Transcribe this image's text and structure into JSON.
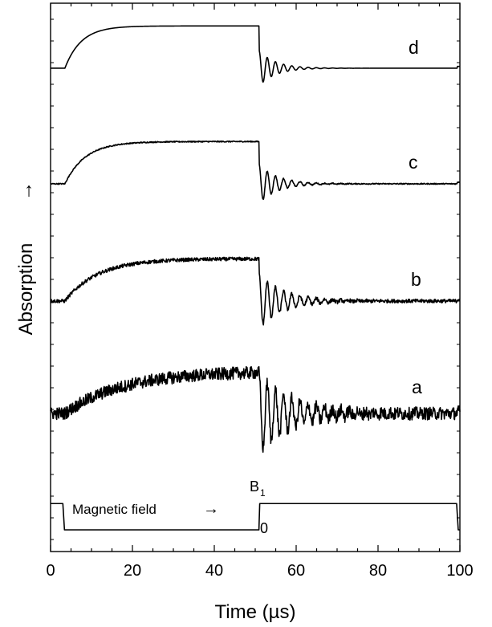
{
  "chart_data": {
    "type": "line",
    "xlabel": "Time (µs)",
    "ylabel": "Absorption",
    "xlim": [
      0,
      100
    ],
    "xticks": [
      0,
      20,
      40,
      60,
      80,
      100
    ],
    "xtick_labels": [
      "0",
      "20",
      "40",
      "60",
      "80",
      "100"
    ],
    "y_axis_ticks_labeled": false,
    "grid": false,
    "legend": "none",
    "line_color": "#000000",
    "series": [
      {
        "name": "d",
        "kind": "absorption",
        "baseline": 0.9,
        "plateau": 10.3,
        "rise_start": 3.5,
        "rise_tau": 4.0,
        "step_off": 51.0,
        "ringing_amplitude": 3.9,
        "ringing_period": 2.0,
        "ringing_decay": 4.0,
        "noise": 0.0
      },
      {
        "name": "c",
        "kind": "absorption",
        "baseline": 0.9,
        "plateau": 10.3,
        "rise_start": 3.5,
        "rise_tau": 5.0,
        "step_off": 51.0,
        "ringing_amplitude": 4.3,
        "ringing_period": 2.0,
        "ringing_decay": 4.5,
        "noise": 0.12
      },
      {
        "name": "b",
        "kind": "absorption",
        "baseline": 0.9,
        "plateau": 10.3,
        "rise_start": 3.5,
        "rise_tau": 8.0,
        "step_off": 51.0,
        "ringing_amplitude": 5.9,
        "ringing_period": 2.0,
        "ringing_decay": 6.0,
        "noise": 0.4
      },
      {
        "name": "a",
        "kind": "absorption",
        "baseline": 0.9,
        "plateau": 10.3,
        "rise_start": 3.5,
        "rise_tau": 14.0,
        "step_off": 51.0,
        "ringing_amplitude": 8.5,
        "ringing_period": 2.0,
        "ringing_decay": 8.5,
        "noise": 1.4
      },
      {
        "name": "Magnetic field",
        "kind": "field-pulse",
        "high": 5.85,
        "low": 0.0,
        "points": [
          [
            0,
            5.85
          ],
          [
            3,
            5.85
          ],
          [
            3.4,
            0.0
          ],
          [
            50.9,
            0.0
          ],
          [
            51.1,
            5.85
          ],
          [
            99.2,
            5.85
          ],
          [
            99.6,
            0.0
          ],
          [
            100,
            0.0
          ]
        ]
      }
    ],
    "curve_labels": [
      "d",
      "c",
      "b",
      "a"
    ],
    "annotations": {
      "field_label": "Magnetic field",
      "field_arrow": "→",
      "b1_main": "B",
      "b1_sub": "1",
      "zero": "0",
      "ylabel_arrow": "→"
    }
  }
}
